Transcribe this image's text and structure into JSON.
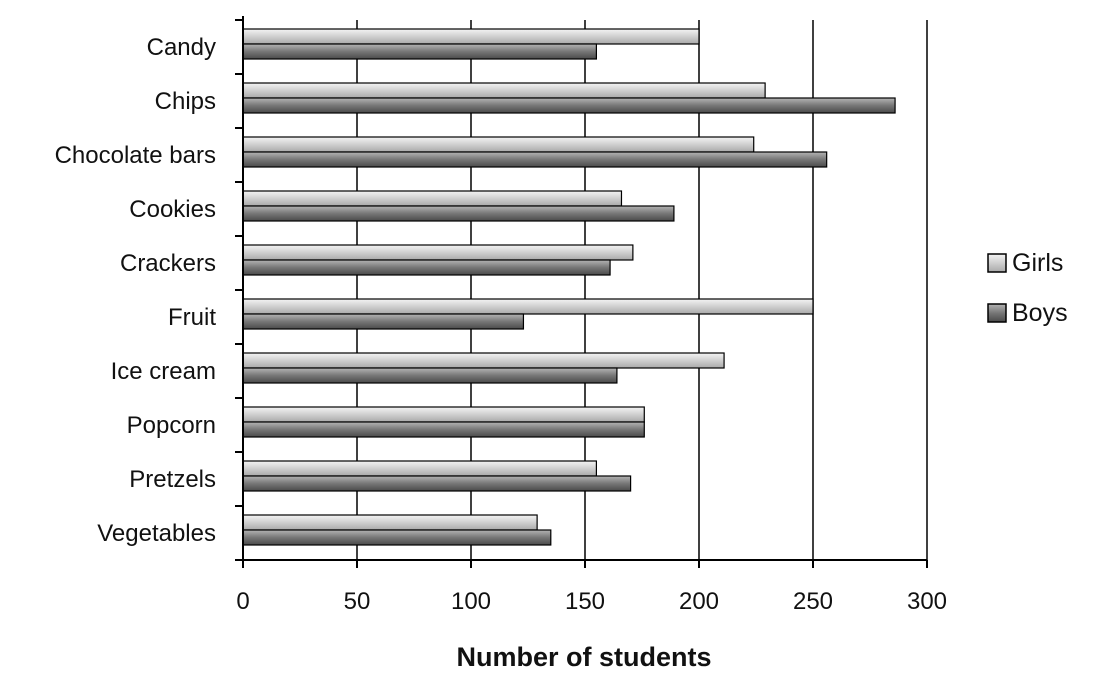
{
  "chart_data": {
    "type": "bar",
    "orientation": "horizontal",
    "title": "",
    "xlabel": "Number of students",
    "ylabel": "",
    "xlim": [
      0,
      300
    ],
    "xticks": [
      0,
      50,
      100,
      150,
      200,
      250,
      300
    ],
    "grid": "vertical",
    "legend_position": "right",
    "categories": [
      "Candy",
      "Chips",
      "Chocolate bars",
      "Cookies",
      "Crackers",
      "Fruit",
      "Ice cream",
      "Popcorn",
      "Pretzels",
      "Vegetables"
    ],
    "series": [
      {
        "name": "Girls",
        "color": "#d0d0d0",
        "values": [
          200,
          229,
          224,
          166,
          171,
          250,
          211,
          176,
          155,
          129
        ]
      },
      {
        "name": "Boys",
        "color": "#787878",
        "values": [
          155,
          286,
          256,
          189,
          161,
          123,
          164,
          176,
          170,
          135
        ]
      }
    ]
  }
}
